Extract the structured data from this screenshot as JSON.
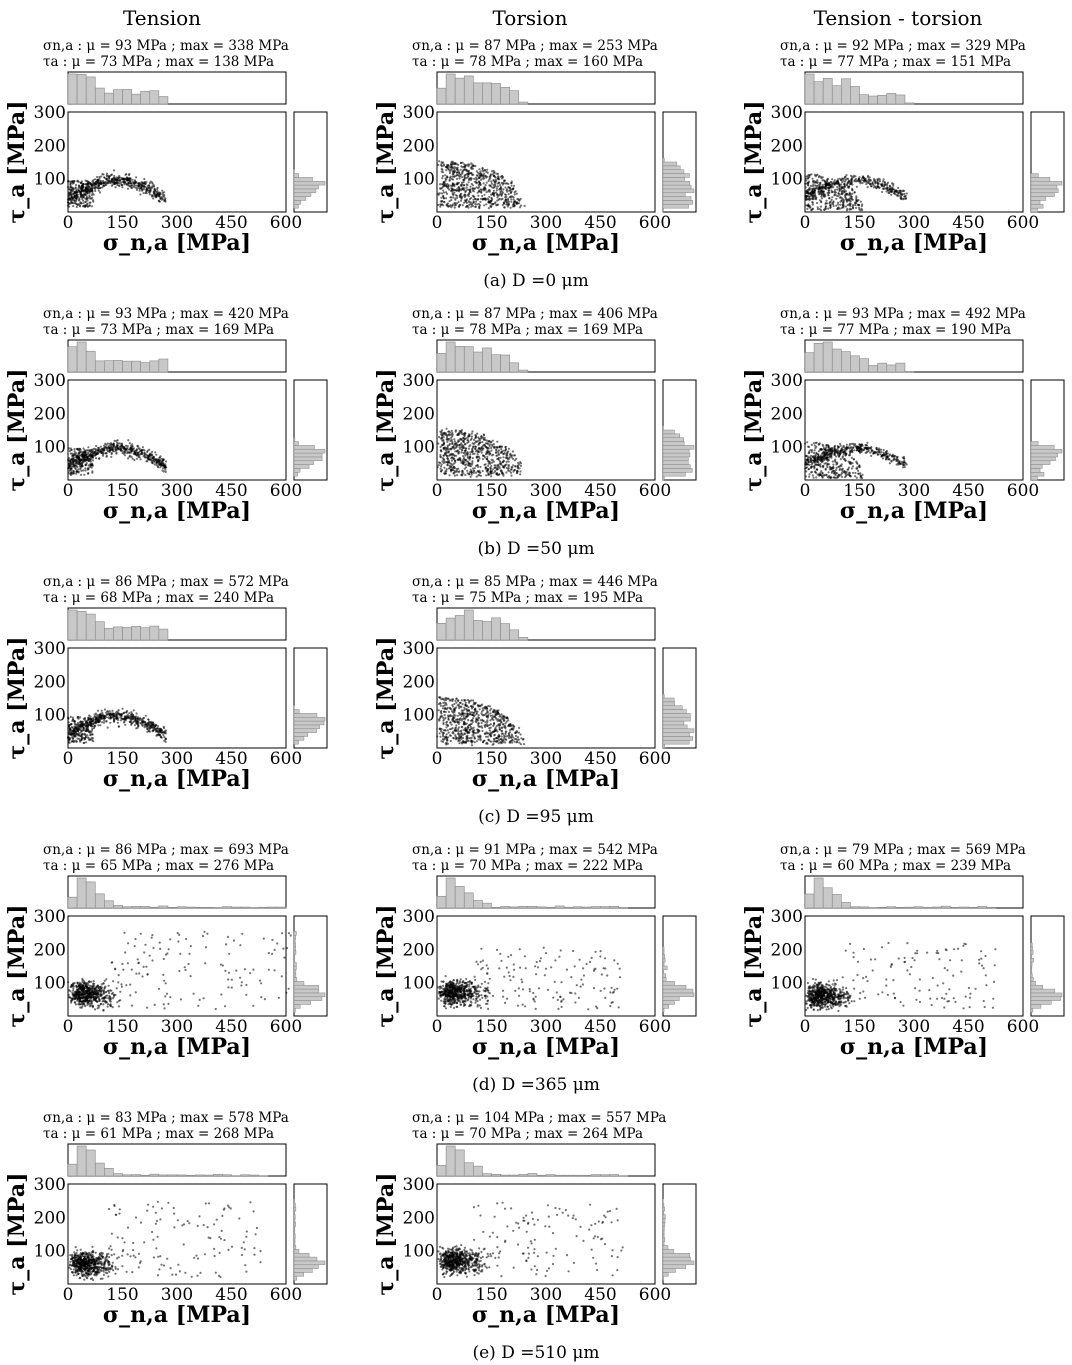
{
  "column_headers": [
    "Tension",
    "Torsion",
    "Tension - torsion"
  ],
  "axes": {
    "x_label": "σ_n,a [MPa]",
    "y_label": "τ_a [MPa]",
    "x_ticks": [
      "0",
      "150",
      "300",
      "450",
      "600"
    ],
    "y_ticks": [
      "100",
      "200",
      "300"
    ]
  },
  "rows": [
    {
      "caption": "(a) D =0 μm",
      "panels": [
        {
          "col": 0,
          "sigma_line": "σn,a : μ = 93 MPa ; max = 338 MPa",
          "tau_line": "τa : μ = 73 MPa ; max = 138 MPa"
        },
        {
          "col": 1,
          "sigma_line": "σn,a : μ = 87 MPa ; max = 253 MPa",
          "tau_line": "τa : μ = 78 MPa ; max = 160 MPa"
        },
        {
          "col": 2,
          "sigma_line": "σn,a : μ = 92 MPa ; max = 329 MPa",
          "tau_line": "τa : μ = 77 MPa ; max = 151 MPa"
        }
      ]
    },
    {
      "caption": "(b) D =50 μm",
      "panels": [
        {
          "col": 0,
          "sigma_line": "σn,a : μ = 93 MPa ; max = 420 MPa",
          "tau_line": "τa : μ = 73 MPa ; max = 169 MPa"
        },
        {
          "col": 1,
          "sigma_line": "σn,a : μ = 87 MPa ; max = 406 MPa",
          "tau_line": "τa : μ = 78 MPa ; max = 169 MPa"
        },
        {
          "col": 2,
          "sigma_line": "σn,a : μ = 93 MPa ; max = 492 MPa",
          "tau_line": "τa : μ = 77 MPa ; max = 190 MPa"
        }
      ]
    },
    {
      "caption": "(c) D =95 μm",
      "panels": [
        {
          "col": 0,
          "sigma_line": "σn,a : μ = 86 MPa ; max = 572 MPa",
          "tau_line": "τa : μ = 68 MPa ; max = 240 MPa"
        },
        {
          "col": 1,
          "sigma_line": "σn,a : μ = 85 MPa ; max = 446 MPa",
          "tau_line": "τa : μ = 75 MPa ; max = 195 MPa"
        }
      ]
    },
    {
      "caption": "(d) D =365 μm",
      "panels": [
        {
          "col": 0,
          "sigma_line": "σn,a : μ = 86 MPa ; max = 693 MPa",
          "tau_line": "τa : μ = 65 MPa ; max = 276 MPa"
        },
        {
          "col": 1,
          "sigma_line": "σn,a : μ = 91 MPa ; max = 542 MPa",
          "tau_line": "τa : μ = 70 MPa ; max = 222 MPa"
        },
        {
          "col": 2,
          "sigma_line": "σn,a : μ = 79 MPa ; max = 569 MPa",
          "tau_line": "τa : μ = 60 MPa ; max = 239 MPa"
        }
      ]
    },
    {
      "caption": "(e) D =510 μm",
      "panels": [
        {
          "col": 0,
          "sigma_line": "σn,a : μ = 83 MPa ; max = 578 MPa",
          "tau_line": "τa : μ = 61 MPa ; max = 268 MPa"
        },
        {
          "col": 1,
          "sigma_line": "σn,a : μ = 104 MPa ; max = 557 MPa",
          "tau_line": "τa : μ = 70 MPa ; max = 264 MPa"
        }
      ]
    }
  ],
  "chart_data": [
    {
      "type": "scatter",
      "row": "(a)",
      "column": "Tension",
      "xlim": [
        0,
        600
      ],
      "ylim": [
        0,
        300
      ],
      "shape": "arc",
      "sigma_mean": 93,
      "sigma_max": 338,
      "tau_mean": 73,
      "tau_max": 138
    },
    {
      "type": "scatter",
      "row": "(a)",
      "column": "Torsion",
      "xlim": [
        0,
        600
      ],
      "ylim": [
        0,
        300
      ],
      "shape": "blob",
      "sigma_mean": 87,
      "sigma_max": 253,
      "tau_mean": 78,
      "tau_max": 160
    },
    {
      "type": "scatter",
      "row": "(a)",
      "column": "Tension - torsion",
      "xlim": [
        0,
        600
      ],
      "ylim": [
        0,
        300
      ],
      "shape": "mixed",
      "sigma_mean": 92,
      "sigma_max": 329,
      "tau_mean": 77,
      "tau_max": 151
    },
    {
      "type": "scatter",
      "row": "(b)",
      "column": "Tension",
      "xlim": [
        0,
        600
      ],
      "ylim": [
        0,
        300
      ],
      "shape": "arc",
      "sigma_mean": 93,
      "sigma_max": 420,
      "tau_mean": 73,
      "tau_max": 169
    },
    {
      "type": "scatter",
      "row": "(b)",
      "column": "Torsion",
      "xlim": [
        0,
        600
      ],
      "ylim": [
        0,
        300
      ],
      "shape": "blob",
      "sigma_mean": 87,
      "sigma_max": 406,
      "tau_mean": 78,
      "tau_max": 169
    },
    {
      "type": "scatter",
      "row": "(b)",
      "column": "Tension - torsion",
      "xlim": [
        0,
        600
      ],
      "ylim": [
        0,
        300
      ],
      "shape": "mixed",
      "sigma_mean": 93,
      "sigma_max": 492,
      "tau_mean": 77,
      "tau_max": 190
    },
    {
      "type": "scatter",
      "row": "(c)",
      "column": "Tension",
      "xlim": [
        0,
        600
      ],
      "ylim": [
        0,
        300
      ],
      "shape": "arc",
      "sigma_mean": 86,
      "sigma_max": 572,
      "tau_mean": 68,
      "tau_max": 240
    },
    {
      "type": "scatter",
      "row": "(c)",
      "column": "Torsion",
      "xlim": [
        0,
        600
      ],
      "ylim": [
        0,
        300
      ],
      "shape": "blob",
      "sigma_mean": 85,
      "sigma_max": 446,
      "tau_mean": 75,
      "tau_max": 195
    },
    {
      "type": "scatter",
      "row": "(d)",
      "column": "Tension",
      "xlim": [
        0,
        600
      ],
      "ylim": [
        0,
        300
      ],
      "shape": "diffuse",
      "sigma_mean": 86,
      "sigma_max": 693,
      "tau_mean": 65,
      "tau_max": 276
    },
    {
      "type": "scatter",
      "row": "(d)",
      "column": "Torsion",
      "xlim": [
        0,
        600
      ],
      "ylim": [
        0,
        300
      ],
      "shape": "diffuse",
      "sigma_mean": 91,
      "sigma_max": 542,
      "tau_mean": 70,
      "tau_max": 222
    },
    {
      "type": "scatter",
      "row": "(d)",
      "column": "Tension - torsion",
      "xlim": [
        0,
        600
      ],
      "ylim": [
        0,
        300
      ],
      "shape": "diffuse",
      "sigma_mean": 79,
      "sigma_max": 569,
      "tau_mean": 60,
      "tau_max": 239
    },
    {
      "type": "scatter",
      "row": "(e)",
      "column": "Tension",
      "xlim": [
        0,
        600
      ],
      "ylim": [
        0,
        300
      ],
      "shape": "diffuse",
      "sigma_mean": 83,
      "sigma_max": 578,
      "tau_mean": 61,
      "tau_max": 268
    },
    {
      "type": "scatter",
      "row": "(e)",
      "column": "Torsion",
      "xlim": [
        0,
        600
      ],
      "ylim": [
        0,
        300
      ],
      "shape": "diffuse",
      "sigma_mean": 104,
      "sigma_max": 557,
      "tau_mean": 70,
      "tau_max": 264
    }
  ]
}
